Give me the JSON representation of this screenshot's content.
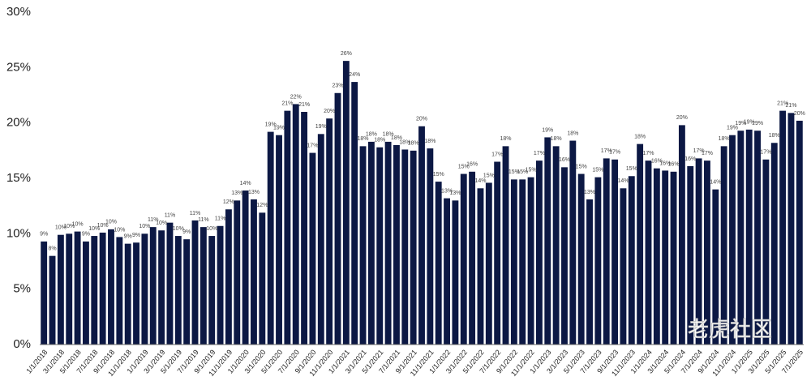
{
  "chart_data": {
    "type": "bar",
    "color": "#0c1844",
    "watermark": "老虎社区",
    "categories": [
      "1/1/2018",
      null,
      "3/1/2018",
      null,
      "5/1/2018",
      null,
      "7/1/2018",
      null,
      "9/1/2018",
      null,
      "11/1/2018",
      null,
      "1/1/2019",
      null,
      "3/1/2019",
      null,
      "5/1/2019",
      null,
      "7/1/2019",
      null,
      "9/1/2019",
      null,
      "11/1/2019",
      null,
      "1/1/2020",
      null,
      "3/1/2020",
      null,
      "5/1/2020",
      null,
      "7/1/2020",
      null,
      "9/1/2020",
      null,
      "11/1/2020",
      null,
      "1/1/2021",
      null,
      "3/1/2021",
      null,
      "5/1/2021",
      null,
      "7/1/2021",
      null,
      "9/1/2021",
      null,
      "11/1/2021",
      null,
      "1/1/2022",
      null,
      "3/1/2022",
      null,
      "5/1/2022",
      null,
      "7/1/2022",
      null,
      "9/1/2022",
      null,
      "11/1/2022",
      null,
      "1/1/2023",
      null,
      "3/1/2023",
      null,
      "5/1/2023",
      null,
      "7/1/2023",
      null,
      "9/1/2023",
      null,
      "11/1/2023",
      null,
      "1/1/2024",
      null,
      "3/1/2024",
      null,
      "5/1/2024",
      null,
      "7/1/2024",
      null,
      "9/1/2024",
      null,
      "11/1/2024",
      null,
      "1/1/2025",
      null,
      "3/1/2025",
      null,
      "5/1/2025",
      null,
      "7/1/2025"
    ],
    "values": [
      9.3,
      8.0,
      9.9,
      10.0,
      10.2,
      9.3,
      9.8,
      10.1,
      10.4,
      9.7,
      9.1,
      9.2,
      10.0,
      10.6,
      10.3,
      11.0,
      9.8,
      9.5,
      11.2,
      10.6,
      9.8,
      10.7,
      12.2,
      13.0,
      13.9,
      13.1,
      11.9,
      19.2,
      18.9,
      21.1,
      21.7,
      21.0,
      17.3,
      19.0,
      20.4,
      22.7,
      25.6,
      23.7,
      17.9,
      18.3,
      17.8,
      18.3,
      18.0,
      17.6,
      17.5,
      19.7,
      17.7,
      14.7,
      13.2,
      13.0,
      15.4,
      15.6,
      14.1,
      14.6,
      16.5,
      17.9,
      14.9,
      14.9,
      15.1,
      16.6,
      18.7,
      17.9,
      16.0,
      18.4,
      15.4,
      13.1,
      15.1,
      16.8,
      16.7,
      14.1,
      15.2,
      18.1,
      16.6,
      15.9,
      15.7,
      15.6,
      19.8,
      16.1,
      16.8,
      16.6,
      14.0,
      17.9,
      18.9,
      19.3,
      19.4,
      19.3,
      16.7,
      18.2,
      21.1,
      20.9,
      20.2
    ],
    "value_labels": [
      "9%",
      "8%",
      "10%",
      "10%",
      "10%",
      "9%",
      "10%",
      "10%",
      "10%",
      "10%",
      "9%",
      "9%",
      "10%",
      "11%",
      "10%",
      "11%",
      "10%",
      "9%",
      "11%",
      "11%",
      "10%",
      "11%",
      "12%",
      "13%",
      "14%",
      "13%",
      "12%",
      "19%",
      "19%",
      "21%",
      "22%",
      "21%",
      "17%",
      "19%",
      "20%",
      "23%",
      "26%",
      "24%",
      "18%",
      "18%",
      "18%",
      "18%",
      "18%",
      "18%",
      "18%",
      "20%",
      "18%",
      "15%",
      "13%",
      "13%",
      "15%",
      "16%",
      "14%",
      "15%",
      "17%",
      "18%",
      "15%",
      "15%",
      "15%",
      "17%",
      "19%",
      "18%",
      "16%",
      "18%",
      "15%",
      "13%",
      "15%",
      "17%",
      "17%",
      "14%",
      "15%",
      "18%",
      "17%",
      "16%",
      "16%",
      "16%",
      "20%",
      "16%",
      "17%",
      "17%",
      "14%",
      "18%",
      "19%",
      "19%",
      "19%",
      "19%",
      "17%",
      "18%",
      "21%",
      "21%",
      "20%"
    ],
    "ylim": [
      0,
      30
    ],
    "yticks": [
      {
        "value": 0,
        "label": "0%"
      },
      {
        "value": 5,
        "label": "5%"
      },
      {
        "value": 10,
        "label": "10%"
      },
      {
        "value": 15,
        "label": "15%"
      },
      {
        "value": 20,
        "label": "20%"
      },
      {
        "value": 25,
        "label": "25%"
      },
      {
        "value": 30,
        "label": "30%"
      }
    ]
  }
}
